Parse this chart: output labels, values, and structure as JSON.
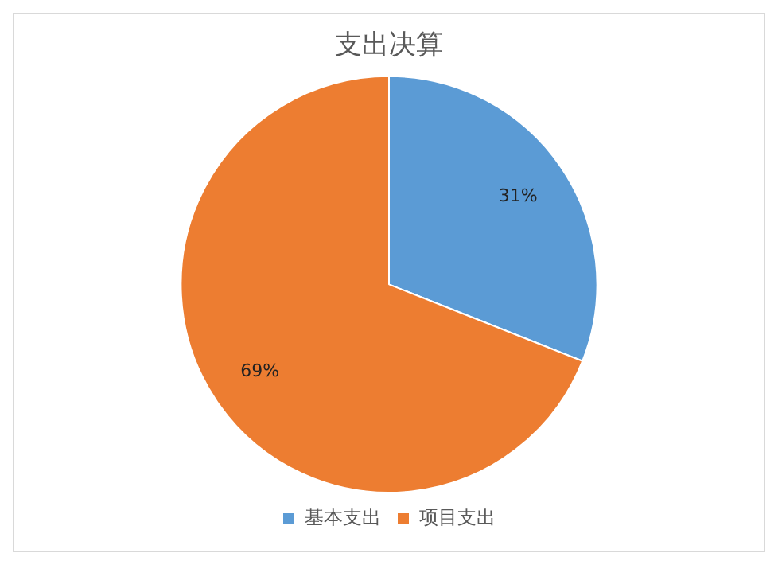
{
  "chart_data": {
    "type": "pie",
    "title": "支出决算",
    "categories": [
      "基本支出",
      "项目支出"
    ],
    "values": [
      31,
      69
    ],
    "colors": [
      "#5b9bd5",
      "#ed7d31"
    ],
    "value_labels": [
      "31%",
      "69%"
    ],
    "legend": "bottom"
  }
}
